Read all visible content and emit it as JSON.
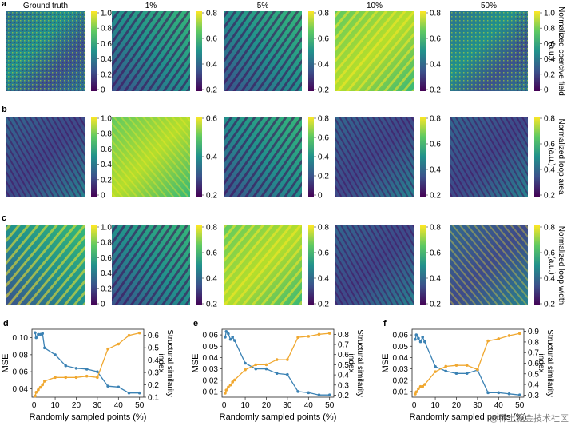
{
  "figure": {
    "column_titles": [
      "Ground truth",
      "1%",
      "5%",
      "10%",
      "50%"
    ],
    "rows": [
      {
        "letter": "a",
        "side_label_lines": [
          "Normalized coercive field",
          "(a.u.)"
        ],
        "colorbars": [
          {
            "ticks": [
              "1.0",
              "0.8",
              "0.6",
              "0.4",
              "0.2",
              "0"
            ]
          },
          {
            "ticks": [
              "0.8",
              "0.6",
              "0.4",
              "0.2"
            ]
          },
          {
            "ticks": [
              "0.8",
              "0.6",
              "0.4",
              "0.2"
            ]
          },
          {
            "ticks": [
              "0.8",
              "0.6",
              "0.4",
              "0.2"
            ]
          },
          {
            "ticks": [
              "1.0",
              "0.8",
              "0.6",
              "0.4",
              "0.2",
              "0"
            ]
          }
        ]
      },
      {
        "letter": "b",
        "side_label_lines": [
          "Normalized loop area",
          "(a.u.)"
        ],
        "colorbars": [
          {
            "ticks": [
              "1.0",
              "0.8",
              "0.6",
              "0.4",
              "0.2",
              "0"
            ]
          },
          {
            "ticks": [
              "0.6",
              "0.4",
              "0.2"
            ]
          },
          {
            "ticks": [
              "0.8",
              "0.6",
              "0.4",
              "0.2",
              "0"
            ]
          },
          {
            "ticks": [
              "0.8",
              "0.6",
              "0.4",
              "0.2"
            ]
          },
          {
            "ticks": [
              "0.8",
              "0.6",
              "0.4",
              "0.2"
            ]
          }
        ]
      },
      {
        "letter": "c",
        "side_label_lines": [
          "Normalized loop width",
          "(a.u.)"
        ],
        "colorbars": [
          {
            "ticks": [
              "1.0",
              "0.8",
              "0.6",
              "0.4",
              "0.2",
              "0"
            ]
          },
          {
            "ticks": [
              "0.8",
              "0.6",
              "0.4",
              "0.2"
            ]
          },
          {
            "ticks": [
              "0.8",
              "0.6",
              "0.4",
              "0.2"
            ]
          },
          {
            "ticks": [
              "0.8",
              "0.6",
              "0.4",
              "0.2"
            ]
          },
          {
            "ticks": [
              "0.8",
              "0.6",
              "0.4",
              "0.2"
            ]
          }
        ]
      }
    ],
    "watermark": "@稀土掘金技术社区"
  },
  "colors": {
    "mse": "#3b82b4",
    "ssim": "#f0a830",
    "viridis_dark": "#440154",
    "viridis_mid": "#21918c",
    "viridis_light": "#fde725"
  },
  "chart_data": [
    {
      "letter": "d",
      "type": "line",
      "xlabel": "Randomly sampled points (%)",
      "ylabel_left": "MSE",
      "ylabel_right_lines": [
        "Structural similarity",
        "index"
      ],
      "x_ticks": [
        0,
        10,
        20,
        30,
        40,
        50
      ],
      "xlim": [
        -1,
        52
      ],
      "ylim_left": [
        0.03,
        0.11
      ],
      "y_ticks_left": [
        "0.04",
        "0.06",
        "0.08",
        "0.10"
      ],
      "y_ticks_left_vals": [
        0.04,
        0.06,
        0.08,
        0.1
      ],
      "ylim_right": [
        0.1,
        0.65
      ],
      "y_ticks_right": [
        "0.1",
        "0.2",
        "0.3",
        "0.4",
        "0.5",
        "0.6"
      ],
      "y_ticks_right_vals": [
        0.1,
        0.2,
        0.3,
        0.4,
        0.5,
        0.6
      ],
      "series": [
        {
          "name": "MSE",
          "axis": "left",
          "x": [
            0.5,
            1,
            2,
            3,
            4,
            5,
            10,
            15,
            20,
            25,
            30,
            35,
            40,
            45,
            50
          ],
          "y": [
            0.106,
            0.1,
            0.104,
            0.104,
            0.105,
            0.088,
            0.08,
            0.067,
            0.064,
            0.063,
            0.06,
            0.043,
            0.042,
            0.035,
            0.035
          ]
        },
        {
          "name": "SSIM",
          "axis": "right",
          "x": [
            0.5,
            1,
            2,
            3,
            4,
            5,
            10,
            15,
            20,
            25,
            30,
            35,
            40,
            45,
            50
          ],
          "y": [
            0.11,
            0.14,
            0.16,
            0.18,
            0.2,
            0.23,
            0.26,
            0.26,
            0.26,
            0.27,
            0.26,
            0.49,
            0.53,
            0.6,
            0.62
          ]
        }
      ]
    },
    {
      "letter": "e",
      "type": "line",
      "xlabel": "Randomly sampled points (%)",
      "ylabel_left": "MSE",
      "ylabel_right_lines": [
        "Structural similarity",
        "index"
      ],
      "x_ticks": [
        0,
        10,
        20,
        30,
        40,
        50
      ],
      "xlim": [
        -1,
        52
      ],
      "ylim_left": [
        0.005,
        0.065
      ],
      "y_ticks_left": [
        "0.01",
        "0.02",
        "0.03",
        "0.04",
        "0.05",
        "0.06"
      ],
      "y_ticks_left_vals": [
        0.01,
        0.02,
        0.03,
        0.04,
        0.05,
        0.06
      ],
      "ylim_right": [
        0.18,
        0.85
      ],
      "y_ticks_right": [
        "0.2",
        "0.3",
        "0.4",
        "0.5",
        "0.6",
        "0.7",
        "0.8"
      ],
      "y_ticks_right_vals": [
        0.2,
        0.3,
        0.4,
        0.5,
        0.6,
        0.7,
        0.8
      ],
      "series": [
        {
          "name": "MSE",
          "axis": "left",
          "x": [
            0.5,
            1,
            2,
            3,
            4,
            5,
            10,
            15,
            20,
            25,
            30,
            35,
            40,
            45,
            50
          ],
          "y": [
            0.058,
            0.063,
            0.061,
            0.056,
            0.058,
            0.055,
            0.035,
            0.03,
            0.03,
            0.026,
            0.025,
            0.01,
            0.009,
            0.007,
            0.007
          ]
        },
        {
          "name": "SSIM",
          "axis": "right",
          "x": [
            0.5,
            1,
            2,
            3,
            4,
            5,
            10,
            15,
            20,
            25,
            30,
            35,
            40,
            45,
            50
          ],
          "y": [
            0.22,
            0.25,
            0.28,
            0.3,
            0.33,
            0.35,
            0.45,
            0.5,
            0.5,
            0.55,
            0.55,
            0.77,
            0.78,
            0.8,
            0.81
          ]
        }
      ]
    },
    {
      "letter": "f",
      "type": "line",
      "xlabel": "Randomly sampled points (%)",
      "ylabel_left": "MSE",
      "ylabel_right_lines": [
        "Structural similarity",
        "index"
      ],
      "x_ticks": [
        0,
        10,
        20,
        30,
        40,
        50
      ],
      "xlim": [
        -1,
        52
      ],
      "ylim_left": [
        0.005,
        0.065
      ],
      "y_ticks_left": [
        "0.01",
        "0.02",
        "0.03",
        "0.04",
        "0.05",
        "0.06"
      ],
      "y_ticks_left_vals": [
        0.01,
        0.02,
        0.03,
        0.04,
        0.05,
        0.06
      ],
      "ylim_right": [
        0.28,
        0.92
      ],
      "y_ticks_right": [
        "0.3",
        "0.4",
        "0.5",
        "0.6",
        "0.7",
        "0.8",
        "0.9"
      ],
      "y_ticks_right_vals": [
        0.3,
        0.4,
        0.5,
        0.6,
        0.7,
        0.8,
        0.9
      ],
      "series": [
        {
          "name": "MSE",
          "axis": "left",
          "x": [
            0.5,
            1,
            2,
            3,
            4,
            5,
            10,
            15,
            20,
            25,
            30,
            35,
            40,
            45,
            50
          ],
          "y": [
            0.056,
            0.06,
            0.057,
            0.054,
            0.058,
            0.054,
            0.032,
            0.028,
            0.026,
            0.026,
            0.029,
            0.009,
            0.009,
            0.008,
            0.007
          ]
        },
        {
          "name": "SSIM",
          "axis": "right",
          "x": [
            0.5,
            1,
            2,
            3,
            4,
            5,
            10,
            15,
            20,
            25,
            30,
            35,
            40,
            45,
            50
          ],
          "y": [
            0.31,
            0.33,
            0.36,
            0.38,
            0.38,
            0.4,
            0.52,
            0.57,
            0.58,
            0.58,
            0.54,
            0.81,
            0.83,
            0.86,
            0.88
          ]
        }
      ]
    }
  ]
}
